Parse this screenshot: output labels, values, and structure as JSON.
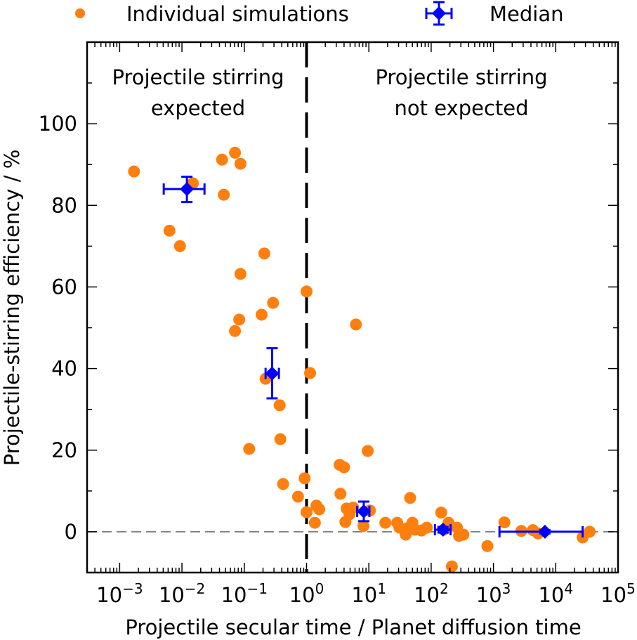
{
  "chart_data": {
    "type": "scatter",
    "title": "",
    "xlabel": "Projectile secular time / Planet diffusion time",
    "ylabel": "Projectile-stirring efficiency / %",
    "xscale": "log",
    "xlim": [
      0.0003,
      100000
    ],
    "ylim": [
      -10,
      120
    ],
    "x_ticks": [
      {
        "value": 0.001,
        "base": "10",
        "exp": "−3"
      },
      {
        "value": 0.01,
        "base": "10",
        "exp": "−2"
      },
      {
        "value": 0.1,
        "base": "10",
        "exp": "−1"
      },
      {
        "value": 1,
        "base": "10",
        "exp": "0"
      },
      {
        "value": 10,
        "base": "10",
        "exp": "1"
      },
      {
        "value": 100,
        "base": "10",
        "exp": "2"
      },
      {
        "value": 1000,
        "base": "10",
        "exp": "3"
      },
      {
        "value": 10000,
        "base": "10",
        "exp": "4"
      },
      {
        "value": 100000,
        "base": "10",
        "exp": "5"
      }
    ],
    "y_ticks": [
      0,
      20,
      40,
      60,
      80,
      100
    ],
    "y_tick_labels": [
      "0",
      "20",
      "40",
      "60",
      "80",
      "100"
    ],
    "y_minor_ticks": [
      -10,
      10,
      30,
      50,
      70,
      90,
      110
    ],
    "grid": false,
    "legend": {
      "placement": "top-outside",
      "entries": [
        {
          "label": "Individual simulations",
          "marker": "circle",
          "color": "#ff7f0e"
        },
        {
          "label": "Median",
          "marker": "diamond-errorbar",
          "color": "#0000ff"
        }
      ]
    },
    "reference_lines": [
      {
        "orientation": "vertical",
        "value": 1,
        "style": "dashed",
        "color": "#000000"
      },
      {
        "orientation": "horizontal",
        "value": 0,
        "style": "dashed",
        "color": "#808080"
      }
    ],
    "annotations": [
      {
        "lines": [
          "Projectile stirring",
          "expected"
        ],
        "region": "left of x=1"
      },
      {
        "lines": [
          "Projectile stirring",
          "not expected"
        ],
        "region": "right of x=1"
      }
    ],
    "series": [
      {
        "name": "Individual simulations",
        "color": "#ff7f0e",
        "points": [
          [
            0.0017,
            88.3
          ],
          [
            0.0063,
            73.8
          ],
          [
            0.0093,
            70.0
          ],
          [
            0.015,
            85.4
          ],
          [
            0.044,
            91.2
          ],
          [
            0.047,
            82.6
          ],
          [
            0.071,
            92.9
          ],
          [
            0.087,
            90.2
          ],
          [
            0.087,
            63.2
          ],
          [
            0.21,
            68.2
          ],
          [
            0.083,
            52.0
          ],
          [
            0.071,
            49.2
          ],
          [
            0.19,
            53.2
          ],
          [
            0.29,
            56.1
          ],
          [
            0.22,
            37.5
          ],
          [
            0.37,
            31.0
          ],
          [
            0.12,
            20.3
          ],
          [
            0.38,
            22.7
          ],
          [
            0.42,
            11.7
          ],
          [
            1.0,
            58.9
          ],
          [
            1.14,
            38.9
          ],
          [
            0.93,
            13.1
          ],
          [
            0.73,
            8.6
          ],
          [
            1.0,
            4.8
          ],
          [
            1.44,
            6.4
          ],
          [
            1.6,
            5.5
          ],
          [
            1.36,
            2.2
          ],
          [
            6.2,
            50.8
          ],
          [
            9.6,
            19.8
          ],
          [
            3.4,
            16.4
          ],
          [
            4.0,
            15.8
          ],
          [
            3.5,
            9.3
          ],
          [
            4.2,
            2.4
          ],
          [
            4.4,
            5.7
          ],
          [
            4.9,
            4.3
          ],
          [
            5.6,
            5.9
          ],
          [
            8.2,
            1.4
          ],
          [
            10.4,
            5.2
          ],
          [
            46,
            8.3
          ],
          [
            18.4,
            2.2
          ],
          [
            28.5,
            2.2
          ],
          [
            31,
            1.0
          ],
          [
            39,
            -0.7
          ],
          [
            42,
            0.9
          ],
          [
            50,
            2.2
          ],
          [
            55,
            0.5
          ],
          [
            70,
            0.3
          ],
          [
            85,
            1.0
          ],
          [
            145,
            4.7
          ],
          [
            160,
            0.5
          ],
          [
            190,
            2.2
          ],
          [
            215,
            -8.5
          ],
          [
            260,
            1.0
          ],
          [
            280,
            -1.0
          ],
          [
            330,
            -0.7
          ],
          [
            800,
            -3.5
          ],
          [
            1500,
            2.3
          ],
          [
            2800,
            0.2
          ],
          [
            4300,
            0.4
          ],
          [
            5200,
            -0.4
          ],
          [
            27000,
            -1.4
          ],
          [
            35000,
            0.0
          ]
        ]
      },
      {
        "name": "Median",
        "color": "#0000ff",
        "points": [
          {
            "x": 0.012,
            "y": 84.0,
            "xerr": [
              0.0051,
              0.023
            ],
            "yerr": [
              80.8,
              87.0
            ]
          },
          {
            "x": 0.28,
            "y": 38.8,
            "xerr": [
              0.22,
              0.36
            ],
            "yerr": [
              32.7,
              45.0
            ]
          },
          {
            "x": 8.3,
            "y": 5.0,
            "xerr": [
              6.5,
              10.2
            ],
            "yerr": [
              2.6,
              7.4
            ]
          },
          {
            "x": 155,
            "y": 0.5,
            "xerr": [
              115,
              205
            ],
            "yerr": [
              -0.2,
              1.2
            ]
          },
          {
            "x": 6700,
            "y": 0.0,
            "xerr": [
              1250,
              27000
            ],
            "yerr": [
              -0.4,
              0.4
            ]
          }
        ]
      }
    ]
  }
}
